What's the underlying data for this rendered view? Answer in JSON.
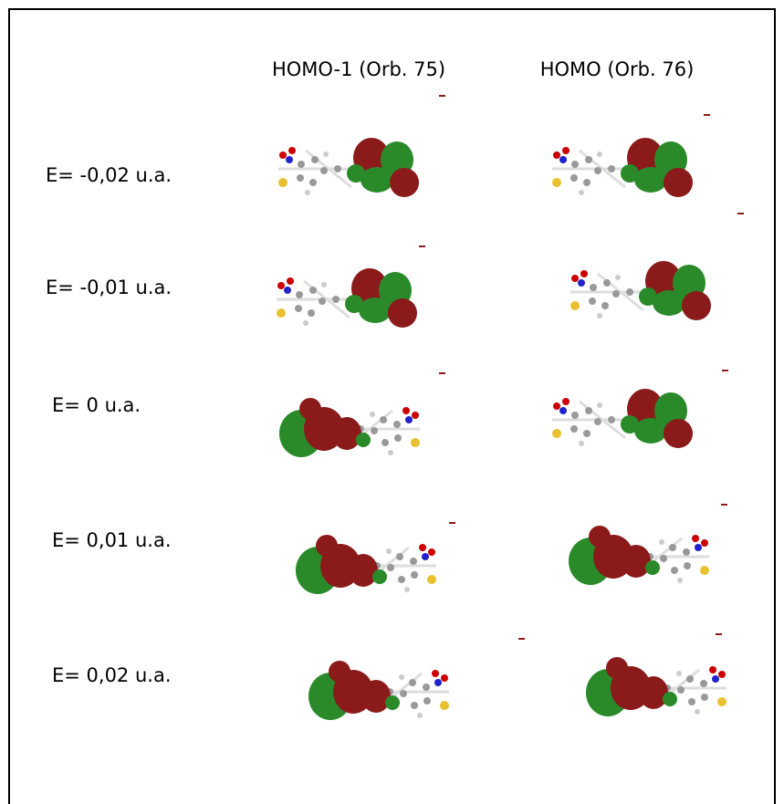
{
  "columns": [
    "HOMO-1 (Orb. 75)",
    "HOMO (Orb. 76)"
  ],
  "rows": [
    "E= -0,02 u.a.",
    "E= -0,01 u.a.",
    "E= 0 u.a.",
    "E= 0,01 u.a.",
    "E= 0,02 u.a."
  ]
}
